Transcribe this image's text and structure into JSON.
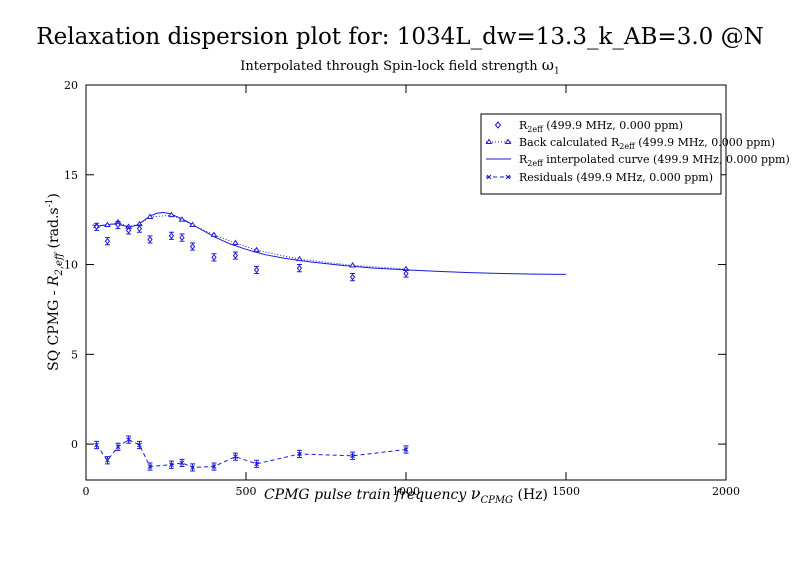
{
  "chart_data": {
    "type": "scatter",
    "title": "Relaxation dispersion plot for: 1034L_dw=13.3_k_AB=3.0 @N",
    "subtitle": {
      "main": "Interpolated through Spin-lock field strength ",
      "symbol": "ω",
      "sub": "1"
    },
    "xlabel": {
      "main": "CPMG pulse train frequency ",
      "symbol": "ν",
      "sub": "CPMG",
      "unit": " (Hz)"
    },
    "ylabel": {
      "pre": "SQ CPMG - ",
      "sym": "R",
      "sub": "2,eff",
      "unit": " (rad.s",
      "exp": "-1",
      "close": ")"
    },
    "xlim": [
      0,
      2000
    ],
    "ylim": [
      -2,
      20
    ],
    "x_ticks": [
      0,
      500,
      1000,
      1500,
      2000
    ],
    "y_ticks": [
      0,
      5,
      10,
      15,
      20
    ],
    "grid": false,
    "legend_position": "top-right",
    "series": [
      {
        "legend": {
          "pre": "R",
          "sub": "2eff",
          "post": " (499.9 MHz, 0.000 ppm)"
        },
        "style": "diamond-points-with-errorbars",
        "color": "#1a1adb",
        "x": [
          33,
          67,
          100,
          133,
          167,
          200,
          267,
          300,
          333,
          400,
          467,
          533,
          667,
          833,
          1000
        ],
        "y": [
          12.1,
          11.3,
          12.2,
          11.9,
          12.0,
          11.4,
          11.6,
          11.5,
          11.0,
          10.4,
          10.5,
          9.7,
          9.8,
          9.3,
          9.5
        ],
        "err": [
          0.2,
          0.2,
          0.2,
          0.2,
          0.2,
          0.2,
          0.2,
          0.2,
          0.2,
          0.2,
          0.2,
          0.2,
          0.2,
          0.2,
          0.2
        ]
      },
      {
        "legend": {
          "pre": "Back calculated R",
          "sub": "2eff",
          "post": " (499.9 MHz, 0.000 ppm)"
        },
        "style": "triangles-dotted",
        "color": "#1a1adb",
        "x": [
          33,
          67,
          100,
          133,
          167,
          200,
          267,
          300,
          333,
          400,
          467,
          533,
          667,
          833,
          1000
        ],
        "y": [
          12.15,
          12.2,
          12.35,
          12.1,
          12.25,
          12.65,
          12.75,
          12.5,
          12.2,
          11.65,
          11.2,
          10.8,
          10.3,
          9.95,
          9.75
        ]
      },
      {
        "legend": {
          "pre": "R",
          "sub": "2eff",
          "post": " interpolated curve (499.9 MHz, 0.000 ppm)"
        },
        "style": "solid-line",
        "color": "#1a1adb",
        "x": [
          20,
          40,
          60,
          80,
          100,
          120,
          140,
          160,
          180,
          200,
          220,
          240,
          260,
          280,
          300,
          330,
          360,
          400,
          450,
          500,
          560,
          620,
          700,
          800,
          900,
          1000,
          1100,
          1200,
          1300,
          1400,
          1500
        ],
        "y": [
          12.2,
          12.15,
          12.2,
          12.25,
          12.25,
          12.15,
          12.1,
          12.2,
          12.45,
          12.7,
          12.85,
          12.9,
          12.85,
          12.7,
          12.55,
          12.25,
          11.95,
          11.55,
          11.15,
          10.85,
          10.55,
          10.35,
          10.15,
          9.95,
          9.8,
          9.7,
          9.62,
          9.55,
          9.5,
          9.47,
          9.45
        ]
      },
      {
        "legend": {
          "pre": "Residuals",
          "sub": "",
          "post": " (499.9 MHz, 0.000 ppm)"
        },
        "style": "x-markers-dashed-errorbars",
        "color": "#1a1adb",
        "x": [
          33,
          67,
          100,
          133,
          167,
          200,
          267,
          300,
          333,
          400,
          467,
          533,
          667,
          833,
          1000
        ],
        "y": [
          -0.05,
          -0.9,
          -0.15,
          0.25,
          -0.05,
          -1.25,
          -1.15,
          -1.05,
          -1.3,
          -1.25,
          -0.7,
          -1.1,
          -0.55,
          -0.65,
          -0.3
        ],
        "err": [
          0.2,
          0.2,
          0.2,
          0.2,
          0.2,
          0.2,
          0.2,
          0.2,
          0.2,
          0.2,
          0.2,
          0.2,
          0.2,
          0.2,
          0.2
        ]
      }
    ]
  }
}
